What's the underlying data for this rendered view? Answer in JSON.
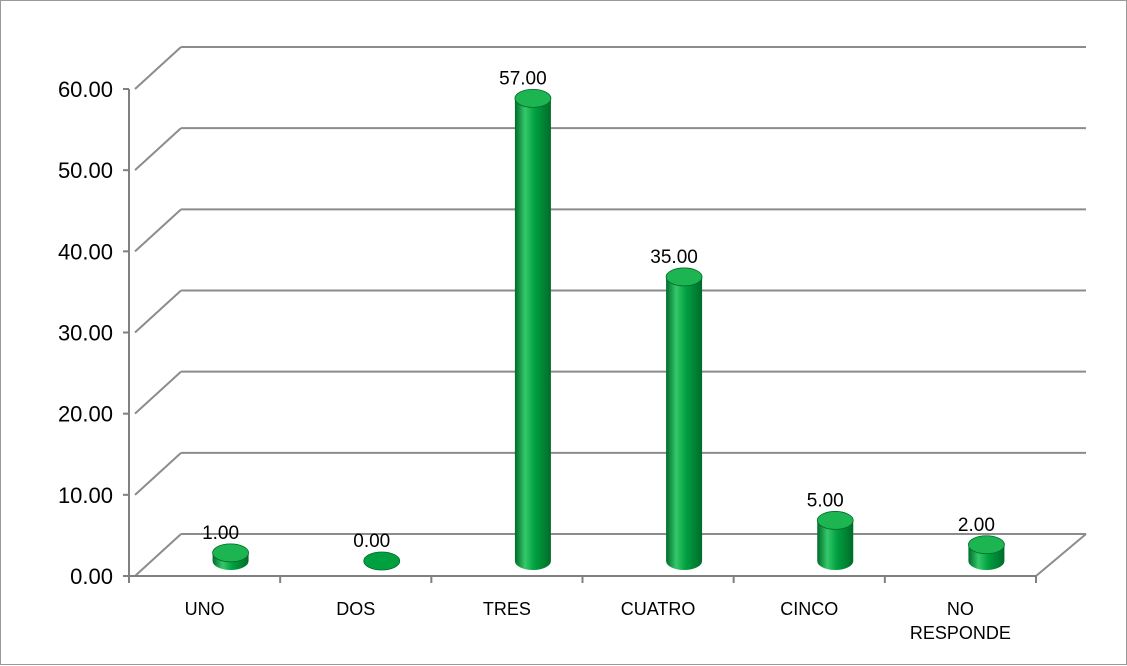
{
  "chart_data": {
    "type": "bar",
    "style": "3d-cylinder",
    "categories": [
      "UNO",
      "DOS",
      "TRES",
      "CUATRO",
      "CINCO",
      "NO RESPONDE"
    ],
    "category_lines": [
      [
        "UNO"
      ],
      [
        "DOS"
      ],
      [
        "TRES"
      ],
      [
        "CUATRO"
      ],
      [
        "CINCO"
      ],
      [
        "NO",
        "RESPONDE"
      ]
    ],
    "values": [
      1.0,
      0.0,
      57.0,
      35.0,
      5.0,
      2.0
    ],
    "data_labels": [
      "1.00",
      "0.00",
      "57.00",
      "35.00",
      "5.00",
      "2.00"
    ],
    "y_ticks": [
      "0.00",
      "10.00",
      "20.00",
      "30.00",
      "40.00",
      "50.00",
      "60.00"
    ],
    "ylim": [
      0,
      60
    ],
    "grid": true,
    "legend": "none",
    "title": "",
    "xlabel": "",
    "ylabel": "",
    "bar_color": "#00A040",
    "bar_highlight": "#35C86A",
    "bar_shadow": "#006B2A",
    "bar_top": "#1DB552",
    "grid_color": "#8C8C8C",
    "axis_color": "#808080"
  }
}
